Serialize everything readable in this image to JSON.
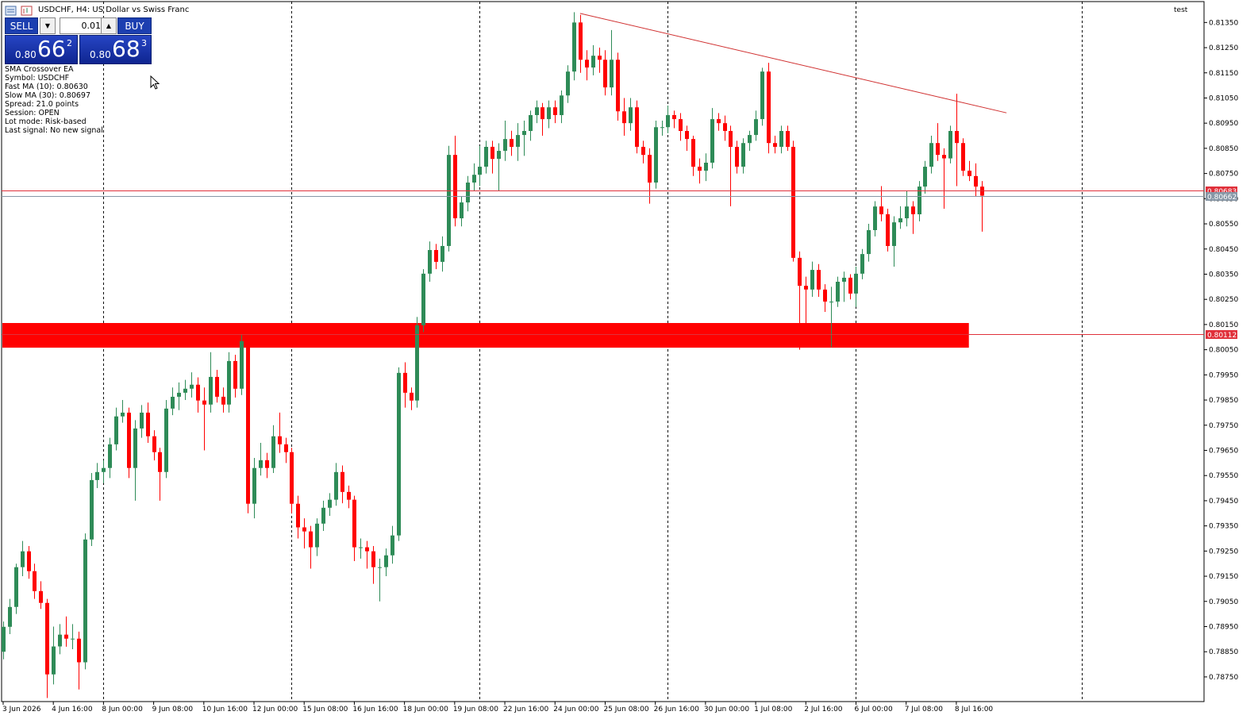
{
  "window": {
    "title": "USDCHF, H4:  US Dollar vs Swiss Franc",
    "tag": "test"
  },
  "trade_panel": {
    "sell": "SELL",
    "buy": "BUY",
    "lot": "0.01",
    "bid": {
      "prefix": "0.80",
      "big": "66",
      "point": "2"
    },
    "ask": {
      "prefix": "0.80",
      "big": "68",
      "point": "3"
    }
  },
  "ea_info": [
    "SMA Crossover EA",
    "Symbol: USDCHF",
    "Fast MA (10): 0.80630",
    "Slow MA (30): 0.80697",
    "Spread: 21.0 points",
    "Session: OPEN",
    "Lot mode: Risk-based",
    "Last signal: No new signal"
  ],
  "chart_data": {
    "type": "candlestick",
    "up_color": "#2e8b57",
    "down_color": "#ff0000",
    "ylim": [
      0.78652,
      0.81433
    ],
    "xlim": [
      -0.25,
      191.5
    ],
    "yticks": [
      {
        "value": 0.8135,
        "label": "0.81350"
      },
      {
        "value": 0.8125,
        "label": "0.81250"
      },
      {
        "value": 0.8115,
        "label": "0.81150"
      },
      {
        "value": 0.8105,
        "label": "0.81050"
      },
      {
        "value": 0.8095,
        "label": "0.80950"
      },
      {
        "value": 0.8085,
        "label": "0.80850"
      },
      {
        "value": 0.8075,
        "label": "0.80750"
      },
      {
        "value": 0.8065,
        "label": "0.80650"
      },
      {
        "value": 0.8055,
        "label": "0.80550"
      },
      {
        "value": 0.8045,
        "label": "0.80450"
      },
      {
        "value": 0.8035,
        "label": "0.80350"
      },
      {
        "value": 0.8025,
        "label": "0.80250"
      },
      {
        "value": 0.8015,
        "label": "0.80150"
      },
      {
        "value": 0.8005,
        "label": "0.80050"
      },
      {
        "value": 0.7995,
        "label": "0.79950"
      },
      {
        "value": 0.7985,
        "label": "0.79850"
      },
      {
        "value": 0.7975,
        "label": "0.79750"
      },
      {
        "value": 0.7965,
        "label": "0.79650"
      },
      {
        "value": 0.7955,
        "label": "0.79550"
      },
      {
        "value": 0.7945,
        "label": "0.79450"
      },
      {
        "value": 0.7935,
        "label": "0.79350"
      },
      {
        "value": 0.7925,
        "label": "0.79250"
      },
      {
        "value": 0.7915,
        "label": "0.79150"
      },
      {
        "value": 0.7905,
        "label": "0.79050"
      },
      {
        "value": 0.7895,
        "label": "0.78950"
      },
      {
        "value": 0.7885,
        "label": "0.78850"
      },
      {
        "value": 0.7875,
        "label": "0.78750"
      }
    ],
    "xticks": [
      {
        "value": 0,
        "label": "3 Jun 2026"
      },
      {
        "value": 8,
        "label": "4 Jun 16:00"
      },
      {
        "value": 16,
        "label": "8 Jun 00:00"
      },
      {
        "value": 24,
        "label": "9 Jun 08:00"
      },
      {
        "value": 32,
        "label": "10 Jun 16:00"
      },
      {
        "value": 40,
        "label": "12 Jun 00:00"
      },
      {
        "value": 48,
        "label": "15 Jun 08:00"
      },
      {
        "value": 56,
        "label": "16 Jun 16:00"
      },
      {
        "value": 64,
        "label": "18 Jun 00:00"
      },
      {
        "value": 72,
        "label": "19 Jun 08:00"
      },
      {
        "value": 80,
        "label": "22 Jun 16:00"
      },
      {
        "value": 88,
        "label": "24 Jun 00:00"
      },
      {
        "value": 96,
        "label": "25 Jun 08:00"
      },
      {
        "value": 104,
        "label": "26 Jun 16:00"
      },
      {
        "value": 112,
        "label": "30 Jun 00:00"
      },
      {
        "value": 120,
        "label": "1 Jul 08:00"
      },
      {
        "value": 128,
        "label": "2 Jul 16:00"
      },
      {
        "value": 136,
        "label": "6 Jul 00:00"
      },
      {
        "value": 144,
        "label": "7 Jul 08:00"
      },
      {
        "value": 152,
        "label": "8 Jul 16:00"
      }
    ],
    "separators": [
      16,
      46,
      76,
      106,
      136,
      172
    ],
    "price_lines": [
      {
        "value": 0.80683,
        "color": "#e0303a"
      },
      {
        "value": 0.80662,
        "color": "#8797a6"
      },
      {
        "value": 0.80112,
        "color": "#e0303a"
      }
    ],
    "zone": {
      "end": 154,
      "high": 0.80156,
      "low": 0.80058,
      "color": "#ff0000"
    },
    "trendline": {
      "start": [
        92,
        0.81386
      ],
      "end": [
        160,
        0.80991
      ],
      "color": "#d03030"
    },
    "candles": [
      [
        0.7885,
        0.7897,
        0.7882,
        0.78949
      ],
      [
        0.78949,
        0.7906,
        0.7892,
        0.79028
      ],
      [
        0.79028,
        0.792,
        0.79,
        0.79186
      ],
      [
        0.79186,
        0.7929,
        0.7915,
        0.79249
      ],
      [
        0.79249,
        0.7927,
        0.7914,
        0.7917
      ],
      [
        0.7917,
        0.792,
        0.7906,
        0.79091
      ],
      [
        0.79091,
        0.7913,
        0.7902,
        0.79044
      ],
      [
        0.79044,
        0.7906,
        0.78666,
        0.7876
      ],
      [
        0.7876,
        0.7895,
        0.7872,
        0.78871
      ],
      [
        0.78871,
        0.7896,
        0.7884,
        0.78918
      ],
      [
        0.78918,
        0.7899,
        0.7887,
        0.78902
      ],
      [
        0.78902,
        0.7896,
        0.7886,
        0.78902
      ],
      [
        0.78902,
        0.7893,
        0.787,
        0.78808
      ],
      [
        0.78808,
        0.7932,
        0.7878,
        0.79296
      ],
      [
        0.79296,
        0.7956,
        0.7927,
        0.79532
      ],
      [
        0.79532,
        0.796,
        0.795,
        0.79564
      ],
      [
        0.79564,
        0.7961,
        0.7952,
        0.7958
      ],
      [
        0.7958,
        0.797,
        0.7954,
        0.79674
      ],
      [
        0.79674,
        0.7982,
        0.7965,
        0.79785
      ],
      [
        0.79785,
        0.7985,
        0.7976,
        0.798
      ],
      [
        0.798,
        0.7982,
        0.7954,
        0.7958
      ],
      [
        0.7958,
        0.7977,
        0.7945,
        0.79737
      ],
      [
        0.79737,
        0.7983,
        0.797,
        0.798
      ],
      [
        0.798,
        0.7984,
        0.7968,
        0.79706
      ],
      [
        0.79706,
        0.7973,
        0.7961,
        0.79643
      ],
      [
        0.79643,
        0.7966,
        0.7945,
        0.79564
      ],
      [
        0.79564,
        0.7985,
        0.7954,
        0.79816
      ],
      [
        0.79816,
        0.799,
        0.7979,
        0.79863
      ],
      [
        0.79863,
        0.7992,
        0.7981,
        0.79879
      ],
      [
        0.79879,
        0.7993,
        0.7985,
        0.79895
      ],
      [
        0.79895,
        0.7996,
        0.7986,
        0.79911
      ],
      [
        0.79911,
        0.7994,
        0.798,
        0.79848
      ],
      [
        0.79848,
        0.799,
        0.7965,
        0.79832
      ],
      [
        0.79832,
        0.8004,
        0.798,
        0.79942
      ],
      [
        0.79942,
        0.7997,
        0.7984,
        0.79863
      ],
      [
        0.79863,
        0.799,
        0.798,
        0.79832
      ],
      [
        0.79832,
        0.8004,
        0.798,
        0.80005
      ],
      [
        0.80005,
        0.8003,
        0.7986,
        0.79895
      ],
      [
        0.79895,
        0.8011,
        0.7987,
        0.80084
      ],
      [
        0.80084,
        0.801,
        0.794,
        0.79438
      ],
      [
        0.79438,
        0.7962,
        0.7938,
        0.7958
      ],
      [
        0.7958,
        0.7968,
        0.7955,
        0.79611
      ],
      [
        0.79611,
        0.7964,
        0.7954,
        0.7958
      ],
      [
        0.7958,
        0.7975,
        0.7956,
        0.79706
      ],
      [
        0.79706,
        0.798,
        0.7964,
        0.79674
      ],
      [
        0.79674,
        0.797,
        0.796,
        0.79643
      ],
      [
        0.79643,
        0.7966,
        0.794,
        0.79438
      ],
      [
        0.79438,
        0.7947,
        0.793,
        0.79344
      ],
      [
        0.79344,
        0.7938,
        0.7926,
        0.79328
      ],
      [
        0.79328,
        0.7935,
        0.7918,
        0.79265
      ],
      [
        0.79265,
        0.7938,
        0.7923,
        0.79359
      ],
      [
        0.79359,
        0.7945,
        0.7933,
        0.79422
      ],
      [
        0.79422,
        0.7948,
        0.7939,
        0.79454
      ],
      [
        0.79454,
        0.796,
        0.7943,
        0.79564
      ],
      [
        0.79564,
        0.7959,
        0.7944,
        0.79485
      ],
      [
        0.79485,
        0.7951,
        0.7942,
        0.79454
      ],
      [
        0.79454,
        0.7947,
        0.7921,
        0.79265
      ],
      [
        0.79265,
        0.793,
        0.7922,
        0.79265
      ],
      [
        0.79265,
        0.7929,
        0.7918,
        0.79249
      ],
      [
        0.79249,
        0.7927,
        0.7912,
        0.79186
      ],
      [
        0.79186,
        0.7922,
        0.7905,
        0.79186
      ],
      [
        0.79186,
        0.7926,
        0.7915,
        0.79233
      ],
      [
        0.79233,
        0.7935,
        0.792,
        0.79312
      ],
      [
        0.79312,
        0.7998,
        0.7929,
        0.79958
      ],
      [
        0.79958,
        0.8,
        0.7982,
        0.79879
      ],
      [
        0.79879,
        0.799,
        0.7981,
        0.79848
      ],
      [
        0.79848,
        0.8018,
        0.7982,
        0.80147
      ],
      [
        0.80147,
        0.8037,
        0.8012,
        0.80352
      ],
      [
        0.80352,
        0.8048,
        0.8032,
        0.80446
      ],
      [
        0.80446,
        0.8047,
        0.8037,
        0.80399
      ],
      [
        0.80399,
        0.805,
        0.8036,
        0.80462
      ],
      [
        0.80462,
        0.8086,
        0.8044,
        0.80824
      ],
      [
        0.80824,
        0.809,
        0.8054,
        0.80572
      ],
      [
        0.80572,
        0.8066,
        0.8054,
        0.80635
      ],
      [
        0.80635,
        0.8074,
        0.806,
        0.80714
      ],
      [
        0.80714,
        0.8079,
        0.8068,
        0.80745
      ],
      [
        0.80745,
        0.8086,
        0.807,
        0.80777
      ],
      [
        0.80777,
        0.8088,
        0.8075,
        0.80856
      ],
      [
        0.80856,
        0.8088,
        0.8075,
        0.80808
      ],
      [
        0.80808,
        0.8087,
        0.8068,
        0.8084
      ],
      [
        0.8084,
        0.8096,
        0.808,
        0.80887
      ],
      [
        0.80887,
        0.8092,
        0.8082,
        0.80856
      ],
      [
        0.80856,
        0.8095,
        0.808,
        0.80903
      ],
      [
        0.80903,
        0.8096,
        0.8082,
        0.80919
      ],
      [
        0.80919,
        0.81,
        0.8088,
        0.80982
      ],
      [
        0.80982,
        0.8104,
        0.8095,
        0.81013
      ],
      [
        0.81013,
        0.8103,
        0.809,
        0.80966
      ],
      [
        0.80966,
        0.8104,
        0.8093,
        0.81013
      ],
      [
        0.81013,
        0.8104,
        0.8095,
        0.80982
      ],
      [
        0.80982,
        0.8108,
        0.8095,
        0.8106
      ],
      [
        0.8106,
        0.8118,
        0.8103,
        0.81155
      ],
      [
        0.81155,
        0.81391,
        0.8112,
        0.8135
      ],
      [
        0.8135,
        0.8138,
        0.8115,
        0.81202
      ],
      [
        0.81202,
        0.8124,
        0.8112,
        0.81171
      ],
      [
        0.81171,
        0.8126,
        0.8114,
        0.81218
      ],
      [
        0.81218,
        0.8125,
        0.8115,
        0.81202
      ],
      [
        0.81202,
        0.8124,
        0.8106,
        0.81092
      ],
      [
        0.81092,
        0.8132,
        0.8106,
        0.81202
      ],
      [
        0.81202,
        0.8123,
        0.8096,
        0.80997
      ],
      [
        0.80997,
        0.8105,
        0.809,
        0.8095
      ],
      [
        0.8095,
        0.8105,
        0.8092,
        0.81013
      ],
      [
        0.81013,
        0.8104,
        0.8083,
        0.80856
      ],
      [
        0.80856,
        0.8088,
        0.8079,
        0.80824
      ],
      [
        0.80824,
        0.8085,
        0.8063,
        0.80714
      ],
      [
        0.80714,
        0.8096,
        0.8069,
        0.80934
      ],
      [
        0.80934,
        0.8096,
        0.809,
        0.80934
      ],
      [
        0.80934,
        0.8102,
        0.8091,
        0.80982
      ],
      [
        0.80982,
        0.81,
        0.8093,
        0.80966
      ],
      [
        0.80966,
        0.8099,
        0.8088,
        0.80919
      ],
      [
        0.80919,
        0.8094,
        0.8084,
        0.80887
      ],
      [
        0.80887,
        0.809,
        0.8074,
        0.80777
      ],
      [
        0.80777,
        0.8081,
        0.8071,
        0.80761
      ],
      [
        0.80761,
        0.8083,
        0.8072,
        0.80793
      ],
      [
        0.80793,
        0.8101,
        0.8077,
        0.80966
      ],
      [
        0.80966,
        0.8099,
        0.8092,
        0.8095
      ],
      [
        0.8095,
        0.8098,
        0.8088,
        0.80919
      ],
      [
        0.80919,
        0.8094,
        0.8062,
        0.80856
      ],
      [
        0.80856,
        0.8088,
        0.8075,
        0.80777
      ],
      [
        0.80777,
        0.8089,
        0.8075,
        0.80871
      ],
      [
        0.80871,
        0.8092,
        0.8084,
        0.80903
      ],
      [
        0.80903,
        0.81,
        0.8088,
        0.80966
      ],
      [
        0.80966,
        0.8117,
        0.8094,
        0.81155
      ],
      [
        0.81155,
        0.8119,
        0.8083,
        0.80871
      ],
      [
        0.80871,
        0.809,
        0.8083,
        0.80856
      ],
      [
        0.80856,
        0.8094,
        0.8083,
        0.80919
      ],
      [
        0.80919,
        0.8094,
        0.8084,
        0.80856
      ],
      [
        0.80856,
        0.8088,
        0.804,
        0.80415
      ],
      [
        0.80415,
        0.8044,
        0.8005,
        0.80304
      ],
      [
        0.80304,
        0.8034,
        0.8006,
        0.80289
      ],
      [
        0.80289,
        0.804,
        0.8026,
        0.80367
      ],
      [
        0.80367,
        0.8039,
        0.8026,
        0.80289
      ],
      [
        0.80289,
        0.8031,
        0.802,
        0.80241
      ],
      [
        0.80241,
        0.803,
        0.8006,
        0.80241
      ],
      [
        0.80241,
        0.8034,
        0.8022,
        0.8032
      ],
      [
        0.8032,
        0.8036,
        0.8024,
        0.80336
      ],
      [
        0.80336,
        0.8035,
        0.8025,
        0.80273
      ],
      [
        0.80273,
        0.8038,
        0.8022,
        0.80352
      ],
      [
        0.80352,
        0.8045,
        0.8033,
        0.8043
      ],
      [
        0.8043,
        0.8055,
        0.804,
        0.80525
      ],
      [
        0.80525,
        0.8064,
        0.805,
        0.80619
      ],
      [
        0.80619,
        0.807,
        0.8056,
        0.80588
      ],
      [
        0.80588,
        0.8061,
        0.8044,
        0.80462
      ],
      [
        0.80462,
        0.8058,
        0.8038,
        0.80556
      ],
      [
        0.80556,
        0.8062,
        0.8053,
        0.80572
      ],
      [
        0.80572,
        0.8068,
        0.8054,
        0.80619
      ],
      [
        0.80619,
        0.8064,
        0.8051,
        0.80588
      ],
      [
        0.80588,
        0.8072,
        0.8056,
        0.80698
      ],
      [
        0.80698,
        0.808,
        0.8067,
        0.80777
      ],
      [
        0.80777,
        0.809,
        0.8075,
        0.80871
      ],
      [
        0.80871,
        0.8095,
        0.808,
        0.80824
      ],
      [
        0.80824,
        0.8085,
        0.8061,
        0.8081
      ],
      [
        0.8081,
        0.8094,
        0.8079,
        0.80919
      ],
      [
        0.80919,
        0.81067,
        0.807,
        0.80871
      ],
      [
        0.80871,
        0.8089,
        0.8074,
        0.80761
      ],
      [
        0.80761,
        0.808,
        0.8072,
        0.8074
      ],
      [
        0.8074,
        0.8079,
        0.8066,
        0.80698
      ],
      [
        0.80698,
        0.8072,
        0.80519,
        0.80662
      ]
    ]
  }
}
